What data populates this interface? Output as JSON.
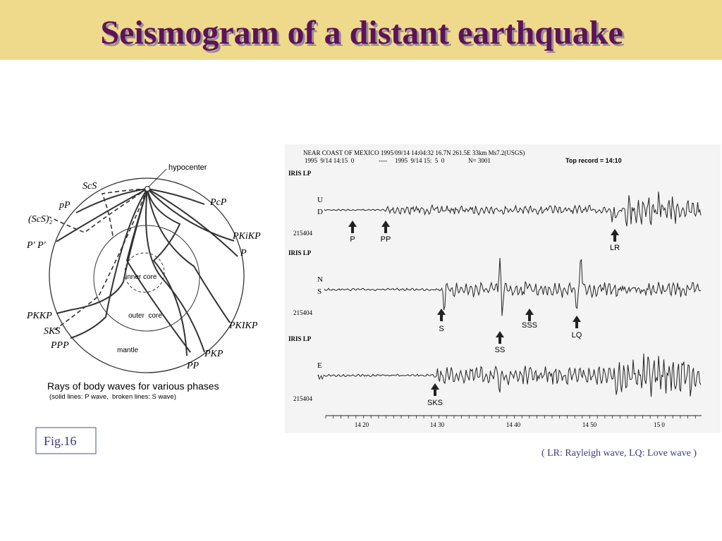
{
  "title": "Seismogram of a distant earthquake",
  "ray_diagram": {
    "hypocenter": "hypocenter",
    "phases": [
      "ScS",
      "pP",
      "(ScS)₂",
      "P′ P′",
      "PcP",
      "PKiKP",
      "P",
      "PKKP",
      "SKS",
      "PPP",
      "PKIKP",
      "PKP",
      "PP"
    ],
    "regions": [
      "inner core",
      "outer  core",
      "mantle"
    ],
    "caption": "Rays of body waves for various phases",
    "caption_note": "(solid lines: P wave,  broken lines: S wave)"
  },
  "seismogram": {
    "header": [
      "NEAR COAST OF MEXICO 1995/09/14 14:04:32 16.7N 261.5E 33km Ms7.2(USGS)",
      "1995  9/14 14:15  0",
      "----",
      "1995  9/14 15:  5  0",
      "N= 3001"
    ],
    "top_record": "Top record = 14:10",
    "traces": [
      {
        "station": "IRIS LP",
        "components": [
          "U",
          "D"
        ],
        "id": "215404",
        "phases": [
          "P",
          "PP",
          "LR"
        ]
      },
      {
        "station": "IRIS LP",
        "components": [
          "N",
          "S"
        ],
        "id": "215404",
        "phases": [
          "S",
          "SS",
          "SSS",
          "LQ"
        ]
      },
      {
        "station": "IRIS LP",
        "components": [
          "E",
          "W"
        ],
        "id": "215404",
        "phases": [
          "SKS"
        ]
      }
    ],
    "time_ticks": [
      "14 20",
      "14 30",
      "14 40",
      "14 50",
      "15 0"
    ]
  },
  "figure_label": "Fig.16",
  "footnote": "( LR: Rayleigh wave, LQ: Love wave )"
}
